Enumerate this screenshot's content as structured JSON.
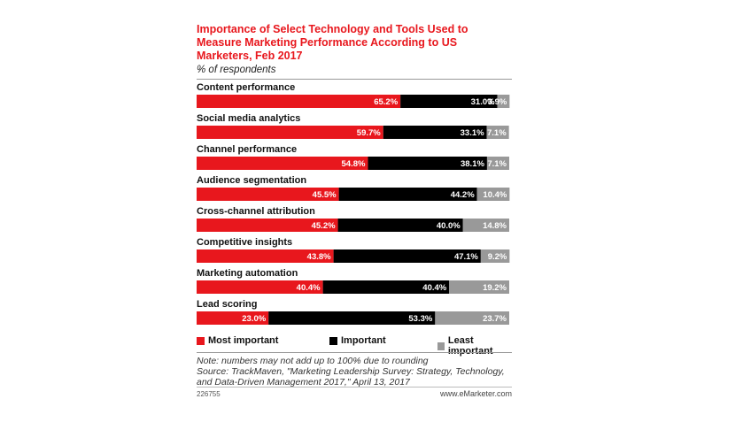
{
  "chart_data": {
    "type": "bar",
    "stacked": true,
    "orientation": "horizontal",
    "title": "Importance of Select Technology and Tools Used to Measure Marketing Performance According to US Marketers, Feb 2017",
    "subtitle": "% of respondents",
    "categories": [
      "Content performance",
      "Social media analytics",
      "Channel performance",
      "Audience segmentation",
      "Cross-channel attribution",
      "Competitive insights",
      "Marketing automation",
      "Lead scoring"
    ],
    "series": [
      {
        "name": "Most important",
        "color": "#e8171d",
        "values": [
          65.2,
          59.7,
          54.8,
          45.5,
          45.2,
          43.8,
          40.4,
          23.0
        ],
        "labels": [
          "65.2%",
          "59.7%",
          "54.8%",
          "45.5%",
          "45.2%",
          "43.8%",
          "40.4%",
          "23.0%"
        ]
      },
      {
        "name": "Important",
        "color": "#000000",
        "values": [
          31.0,
          33.1,
          38.1,
          44.2,
          40.0,
          47.1,
          40.4,
          53.3
        ],
        "labels": [
          "31.0%",
          "33.1%",
          "38.1%",
          "44.2%",
          "40.0%",
          "47.1%",
          "40.4%",
          "53.3%"
        ]
      },
      {
        "name": "Least important",
        "color": "#999999",
        "values": [
          3.9,
          7.1,
          7.1,
          10.4,
          14.8,
          9.2,
          19.2,
          23.7
        ],
        "labels": [
          "3.9%",
          "7.1%",
          "7.1%",
          "10.4%",
          "14.8%",
          "9.2%",
          "19.2%",
          "23.7%"
        ]
      }
    ],
    "xlim": [
      0,
      100
    ],
    "grid": false,
    "legend_position": "bottom"
  },
  "note": "Note: numbers may not add up to 100% due to rounding",
  "source_line1": "Source: TrackMaven, \"Marketing Leadership Survey: Strategy, Technology,",
  "source_line2": "and Data-Driven Management 2017,\" April 13, 2017",
  "footer_id": "226755",
  "footer_brand": "www.eMarketer.com"
}
